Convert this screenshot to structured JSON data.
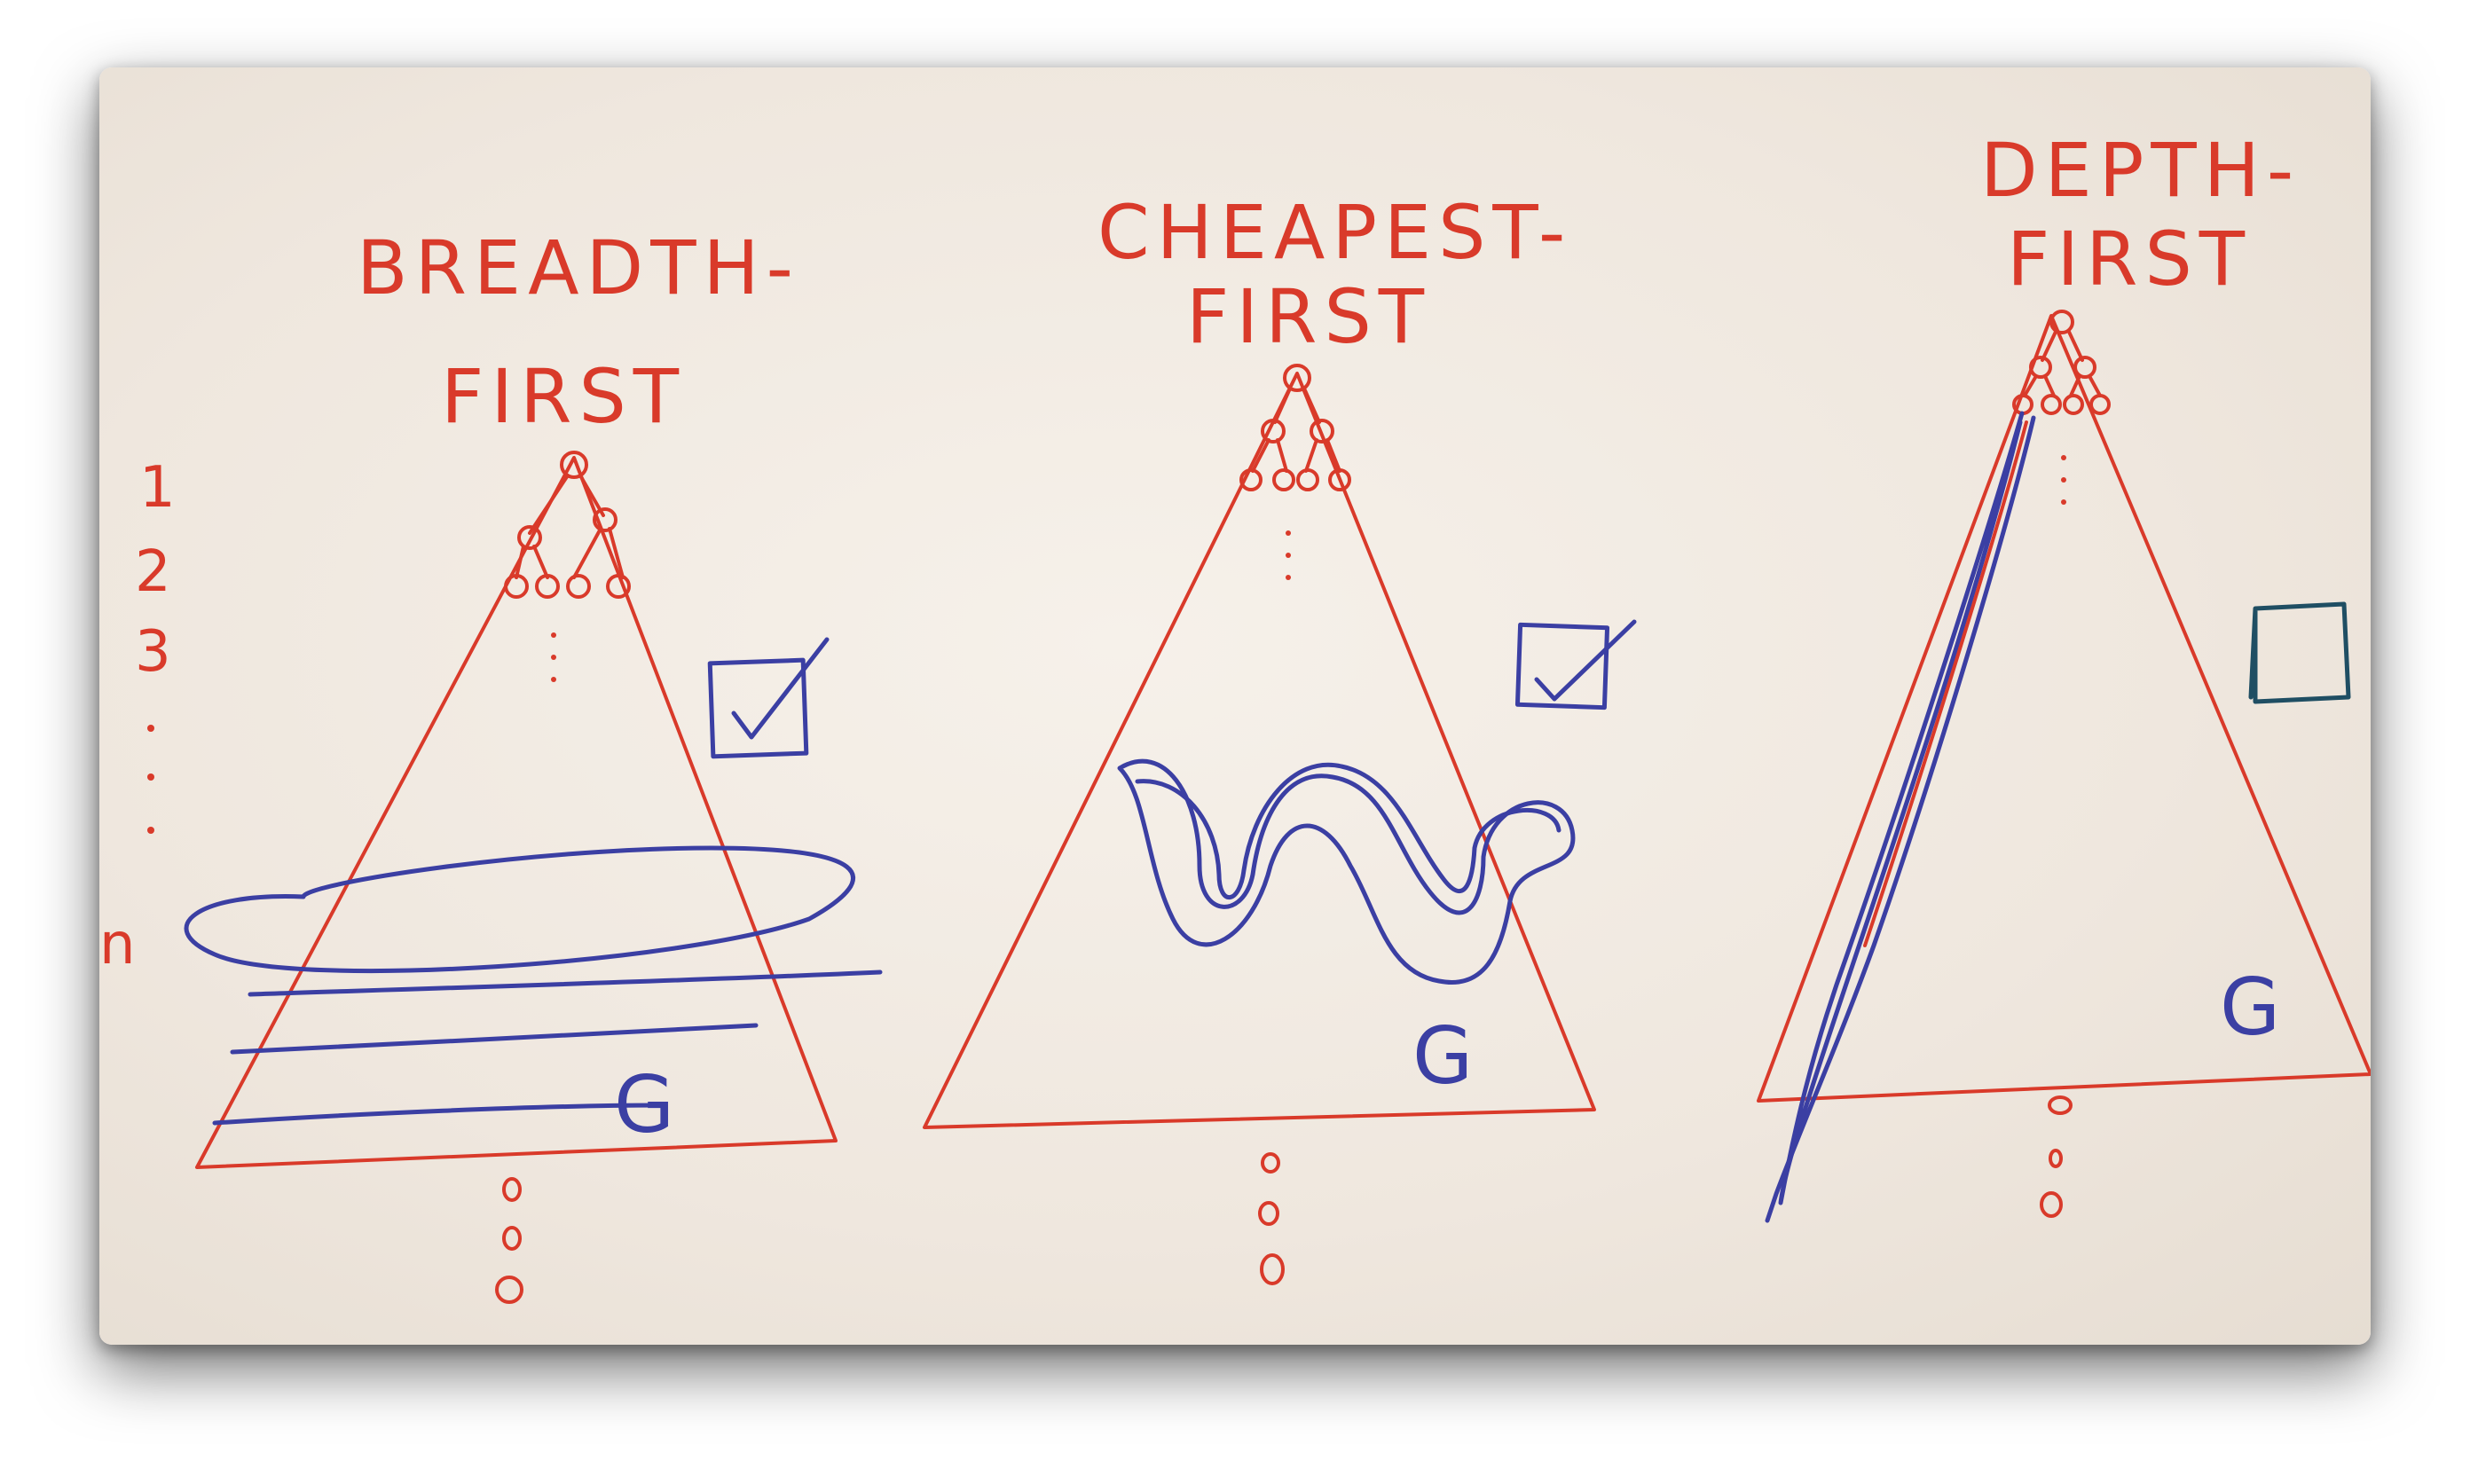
{
  "panels": [
    {
      "title_line1": "BREADTH-",
      "title_line2": "FIRST",
      "goal_label": "G",
      "check_mark": "✓"
    },
    {
      "title_line1": "CHEAPEST-",
      "title_line2": "FIRST",
      "goal_label": "G",
      "check_mark": "✓"
    },
    {
      "title_line1": "DEPTH-",
      "title_line2": "FIRST",
      "goal_label": "G",
      "check_mark": ""
    }
  ],
  "levels": [
    "1",
    "2",
    "3",
    "n"
  ],
  "colors": {
    "ink_red": "#d93a2a",
    "ink_blue": "#3b3fa3",
    "ink_teal": "#1f4e63",
    "board": "#f2ebe3"
  }
}
